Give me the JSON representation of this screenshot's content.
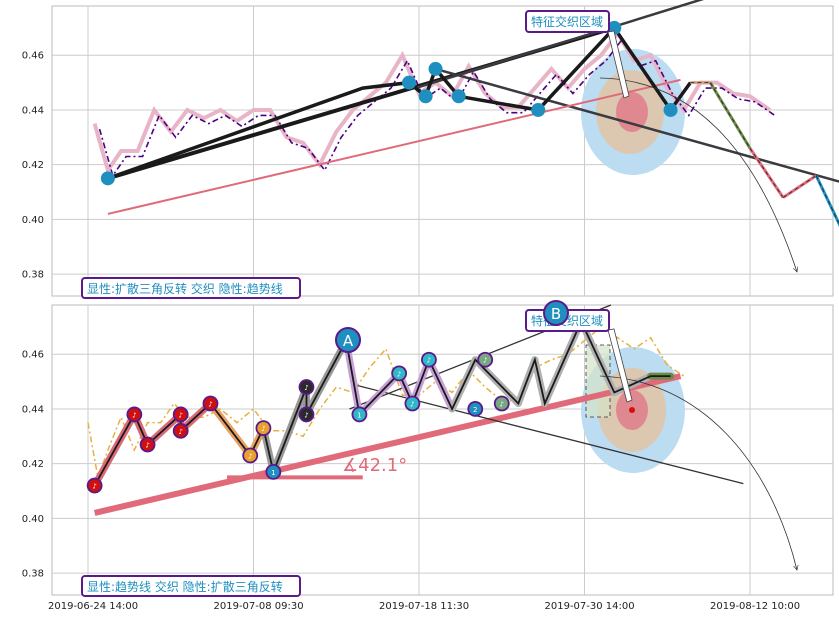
{
  "colors": {
    "blue": "#1f8fc0",
    "purple": "#4b0082",
    "pink": "#e06a7a",
    "dark": "#2a2a2a",
    "gold": "#e8b040",
    "red": "#d01010"
  },
  "chart_data": [
    {
      "type": "line",
      "panel": "top",
      "ylim": [
        0.372,
        0.478
      ],
      "y_ticks": [
        "0.38",
        "0.40",
        "0.42",
        "0.44",
        "0.46"
      ],
      "y_tick_values": [
        0.38,
        0.4,
        0.42,
        0.44,
        0.46
      ],
      "annotation_feature": "特征交织区域",
      "caption": "显性:扩散三角反转 交织 隐性:趋势线",
      "price_x": [
        0.2,
        0.6,
        1.0,
        1.5,
        2.0,
        2.5,
        3.0,
        3.5,
        4.0,
        4.5,
        5.0,
        5.5,
        6.0,
        6.5,
        7.0,
        7.5,
        8.0,
        8.5,
        9.0,
        9.5,
        10.0,
        10.5,
        11.0,
        11.5,
        12.0,
        12.5,
        13.0,
        13.5,
        14.0,
        14.5,
        15.0,
        15.5,
        16.0,
        16.5,
        17.0,
        17.5,
        18.0,
        18.5,
        19.0,
        19.5,
        20.0,
        20.6
      ],
      "price_y": [
        0.435,
        0.418,
        0.425,
        0.425,
        0.44,
        0.432,
        0.44,
        0.437,
        0.44,
        0.436,
        0.44,
        0.44,
        0.43,
        0.428,
        0.42,
        0.432,
        0.44,
        0.445,
        0.45,
        0.46,
        0.446,
        0.45,
        0.445,
        0.456,
        0.446,
        0.441,
        0.441,
        0.448,
        0.455,
        0.448,
        0.455,
        0.46,
        0.468,
        0.458,
        0.46,
        0.448,
        0.44,
        0.45,
        0.45,
        0.446,
        0.445,
        0.44
      ],
      "zigzag_x": [
        0.6,
        8.3,
        9.7,
        10.2,
        10.5,
        11.2,
        13.6,
        15.9,
        17.6,
        18.2
      ],
      "zigzag_y": [
        0.415,
        0.448,
        0.45,
        0.445,
        0.455,
        0.445,
        0.44,
        0.47,
        0.44,
        0.45
      ],
      "pivot_x": [
        0.6,
        9.7,
        10.2,
        10.5,
        11.2,
        13.6,
        15.9,
        17.6
      ],
      "pivot_y": [
        0.415,
        0.45,
        0.445,
        0.455,
        0.445,
        0.44,
        0.47,
        0.44
      ],
      "trend_lines": [
        {
          "x": [
            0.6,
            15.9
          ],
          "y": [
            0.415,
            0.47
          ],
          "style": "thick-black"
        },
        {
          "x": [
            10.5,
            23.0
          ],
          "y": [
            0.455,
            0.4128
          ],
          "style": "dark-grey"
        },
        {
          "x": [
            9.9,
            18.7
          ],
          "y": [
            0.448,
            0.481
          ],
          "style": "dark-grey"
        },
        {
          "x": [
            0.6,
            17.9
          ],
          "y": [
            0.402,
            0.451
          ],
          "style": "pink"
        }
      ],
      "projection_x": [
        18.2,
        18.8,
        20.0,
        21.0,
        22.0,
        23.3,
        24.0
      ],
      "projection_y": [
        0.45,
        0.45,
        0.426,
        0.408,
        0.416,
        0.383,
        0.382
      ]
    },
    {
      "type": "line",
      "panel": "bottom",
      "ylim": [
        0.372,
        0.478
      ],
      "y_ticks": [
        "0.38",
        "0.40",
        "0.42",
        "0.44",
        "0.46"
      ],
      "y_tick_values": [
        0.38,
        0.4,
        0.42,
        0.44,
        0.46
      ],
      "x_ticks": [
        "2019-06-24 14:00",
        "2019-07-08 09:30",
        "2019-07-18 11:30",
        "2019-07-30 14:00",
        "2019-08-12 10:00"
      ],
      "x_tick_values": [
        0,
        5,
        10,
        15,
        20
      ],
      "annotation_feature": "特征交织区域",
      "caption": "显性:趋势线 交织 隐性:扩散三角反转",
      "angle_label": "∡42.1°",
      "marker_A": "A",
      "marker_B": "B",
      "price_x": [
        0.0,
        0.3,
        0.6,
        1.0,
        1.4,
        1.8,
        2.2,
        2.6,
        3.0,
        3.5,
        4.0,
        4.5,
        5.0,
        5.5,
        6.0,
        6.5,
        7.0,
        7.5,
        8.0,
        8.5,
        9.0,
        9.5,
        10.0,
        10.5,
        11.0,
        11.5,
        12.0,
        12.5,
        13.0,
        13.5,
        14.0,
        14.5,
        15.0,
        15.5,
        16.0,
        16.5,
        17.0,
        17.5,
        18.0
      ],
      "price_y": [
        0.435,
        0.415,
        0.425,
        0.437,
        0.425,
        0.435,
        0.435,
        0.442,
        0.437,
        0.437,
        0.44,
        0.435,
        0.44,
        0.432,
        0.432,
        0.43,
        0.44,
        0.448,
        0.446,
        0.455,
        0.462,
        0.445,
        0.445,
        0.45,
        0.446,
        0.454,
        0.448,
        0.443,
        0.443,
        0.455,
        0.458,
        0.46,
        0.465,
        0.47,
        0.466,
        0.462,
        0.466,
        0.456,
        0.452
      ],
      "zigzag_x": [
        0.2,
        1.4,
        1.8,
        2.8,
        2.8,
        3.7,
        4.9,
        5.3,
        5.6,
        6.6,
        6.6,
        7.8,
        8.2,
        9.4,
        9.8,
        10.3,
        11.0,
        11.7,
        13.0,
        13.5,
        13.8,
        14.9,
        15.9,
        17.0,
        17.6
      ],
      "zigzag_y": [
        0.412,
        0.438,
        0.427,
        0.438,
        0.432,
        0.442,
        0.423,
        0.433,
        0.417,
        0.448,
        0.438,
        0.465,
        0.438,
        0.453,
        0.442,
        0.458,
        0.44,
        0.458,
        0.442,
        0.458,
        0.442,
        0.472,
        0.446,
        0.452,
        0.452
      ],
      "markers": [
        {
          "x": 0.2,
          "y": 0.412,
          "fill": "#d01010",
          "label": "♪"
        },
        {
          "x": 1.4,
          "y": 0.438,
          "fill": "#d01010",
          "label": "♪"
        },
        {
          "x": 1.8,
          "y": 0.427,
          "fill": "#d01010",
          "label": "♪"
        },
        {
          "x": 2.8,
          "y": 0.438,
          "fill": "#d01010",
          "label": "♪"
        },
        {
          "x": 2.8,
          "y": 0.432,
          "fill": "#d01010",
          "label": "♪"
        },
        {
          "x": 3.7,
          "y": 0.442,
          "fill": "#d01010",
          "label": "♪"
        },
        {
          "x": 4.9,
          "y": 0.423,
          "fill": "#e8a030",
          "label": "♪"
        },
        {
          "x": 5.3,
          "y": 0.433,
          "fill": "#e8a030",
          "label": "♪"
        },
        {
          "x": 5.6,
          "y": 0.417,
          "fill": "#1f8fc0",
          "label": "1"
        },
        {
          "x": 6.6,
          "y": 0.448,
          "fill": "#2a2a2a",
          "label": "♪"
        },
        {
          "x": 6.6,
          "y": 0.438,
          "fill": "#2a2a2a",
          "label": "♪"
        },
        {
          "x": 8.2,
          "y": 0.438,
          "fill": "#30b8c8",
          "label": "1"
        },
        {
          "x": 9.4,
          "y": 0.453,
          "fill": "#30b8c8",
          "label": "♪"
        },
        {
          "x": 9.8,
          "y": 0.442,
          "fill": "#30b8c8",
          "label": "♪"
        },
        {
          "x": 10.3,
          "y": 0.458,
          "fill": "#30b8c8",
          "label": "♪"
        },
        {
          "x": 11.7,
          "y": 0.44,
          "fill": "#1f8fc0",
          "label": "2"
        },
        {
          "x": 12.0,
          "y": 0.458,
          "fill": "#78a880",
          "label": "♪"
        },
        {
          "x": 12.5,
          "y": 0.442,
          "fill": "#78a880",
          "label": "♪"
        }
      ],
      "trend_lines": [
        {
          "x": [
            0.2,
            17.9
          ],
          "y": [
            0.402,
            0.452
          ],
          "style": "pink-thick"
        },
        {
          "x": [
            8.0,
            19.8
          ],
          "y": [
            0.449,
            0.4127
          ],
          "style": "dark"
        },
        {
          "x": [
            7.9,
            15.8
          ],
          "y": [
            0.44,
            0.478
          ],
          "style": "dark"
        },
        {
          "x": [
            4.2,
            8.3
          ],
          "y": [
            0.415,
            0.415
          ],
          "style": "pink-base"
        }
      ]
    }
  ]
}
